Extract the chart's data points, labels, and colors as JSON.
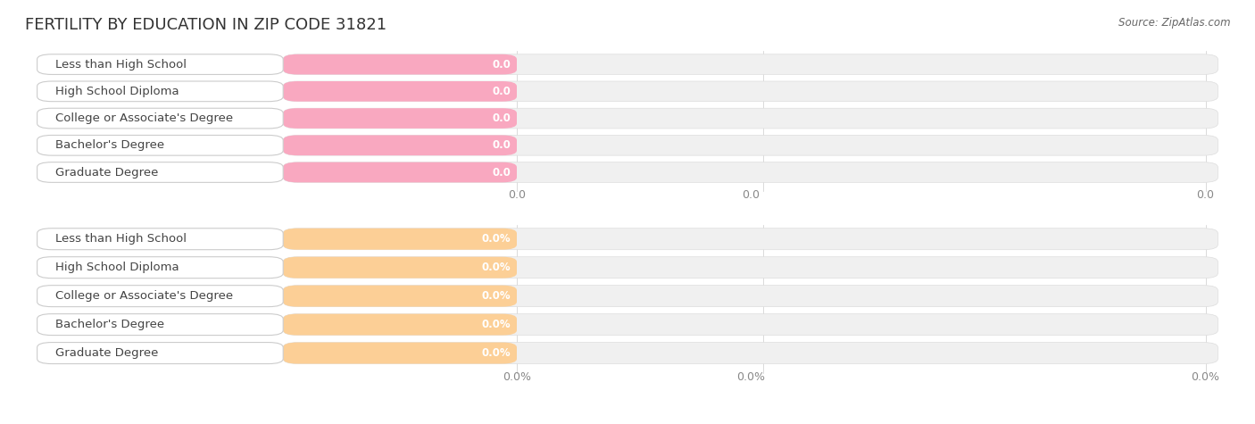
{
  "title": "FERTILITY BY EDUCATION IN ZIP CODE 31821",
  "source": "Source: ZipAtlas.com",
  "categories": [
    "Less than High School",
    "High School Diploma",
    "College or Associate's Degree",
    "Bachelor's Degree",
    "Graduate Degree"
  ],
  "top_values": [
    0.0,
    0.0,
    0.0,
    0.0,
    0.0
  ],
  "bottom_values": [
    0.0,
    0.0,
    0.0,
    0.0,
    0.0
  ],
  "top_bar_color": "#F9A8C0",
  "top_bar_bg": "#F0F0F0",
  "top_label_bg": "#FFFFFF",
  "bottom_bar_color": "#FCCF96",
  "bottom_bar_bg": "#F0F0F0",
  "bottom_label_bg": "#FFFFFF",
  "top_value_format": "0.0",
  "bottom_value_format": "0.0%",
  "top_axis_label": "0.0",
  "bottom_axis_label": "0.0%",
  "background_color": "#FFFFFF",
  "title_fontsize": 13,
  "label_fontsize": 9.5,
  "value_fontsize": 8.5,
  "axis_fontsize": 9,
  "source_fontsize": 8.5
}
